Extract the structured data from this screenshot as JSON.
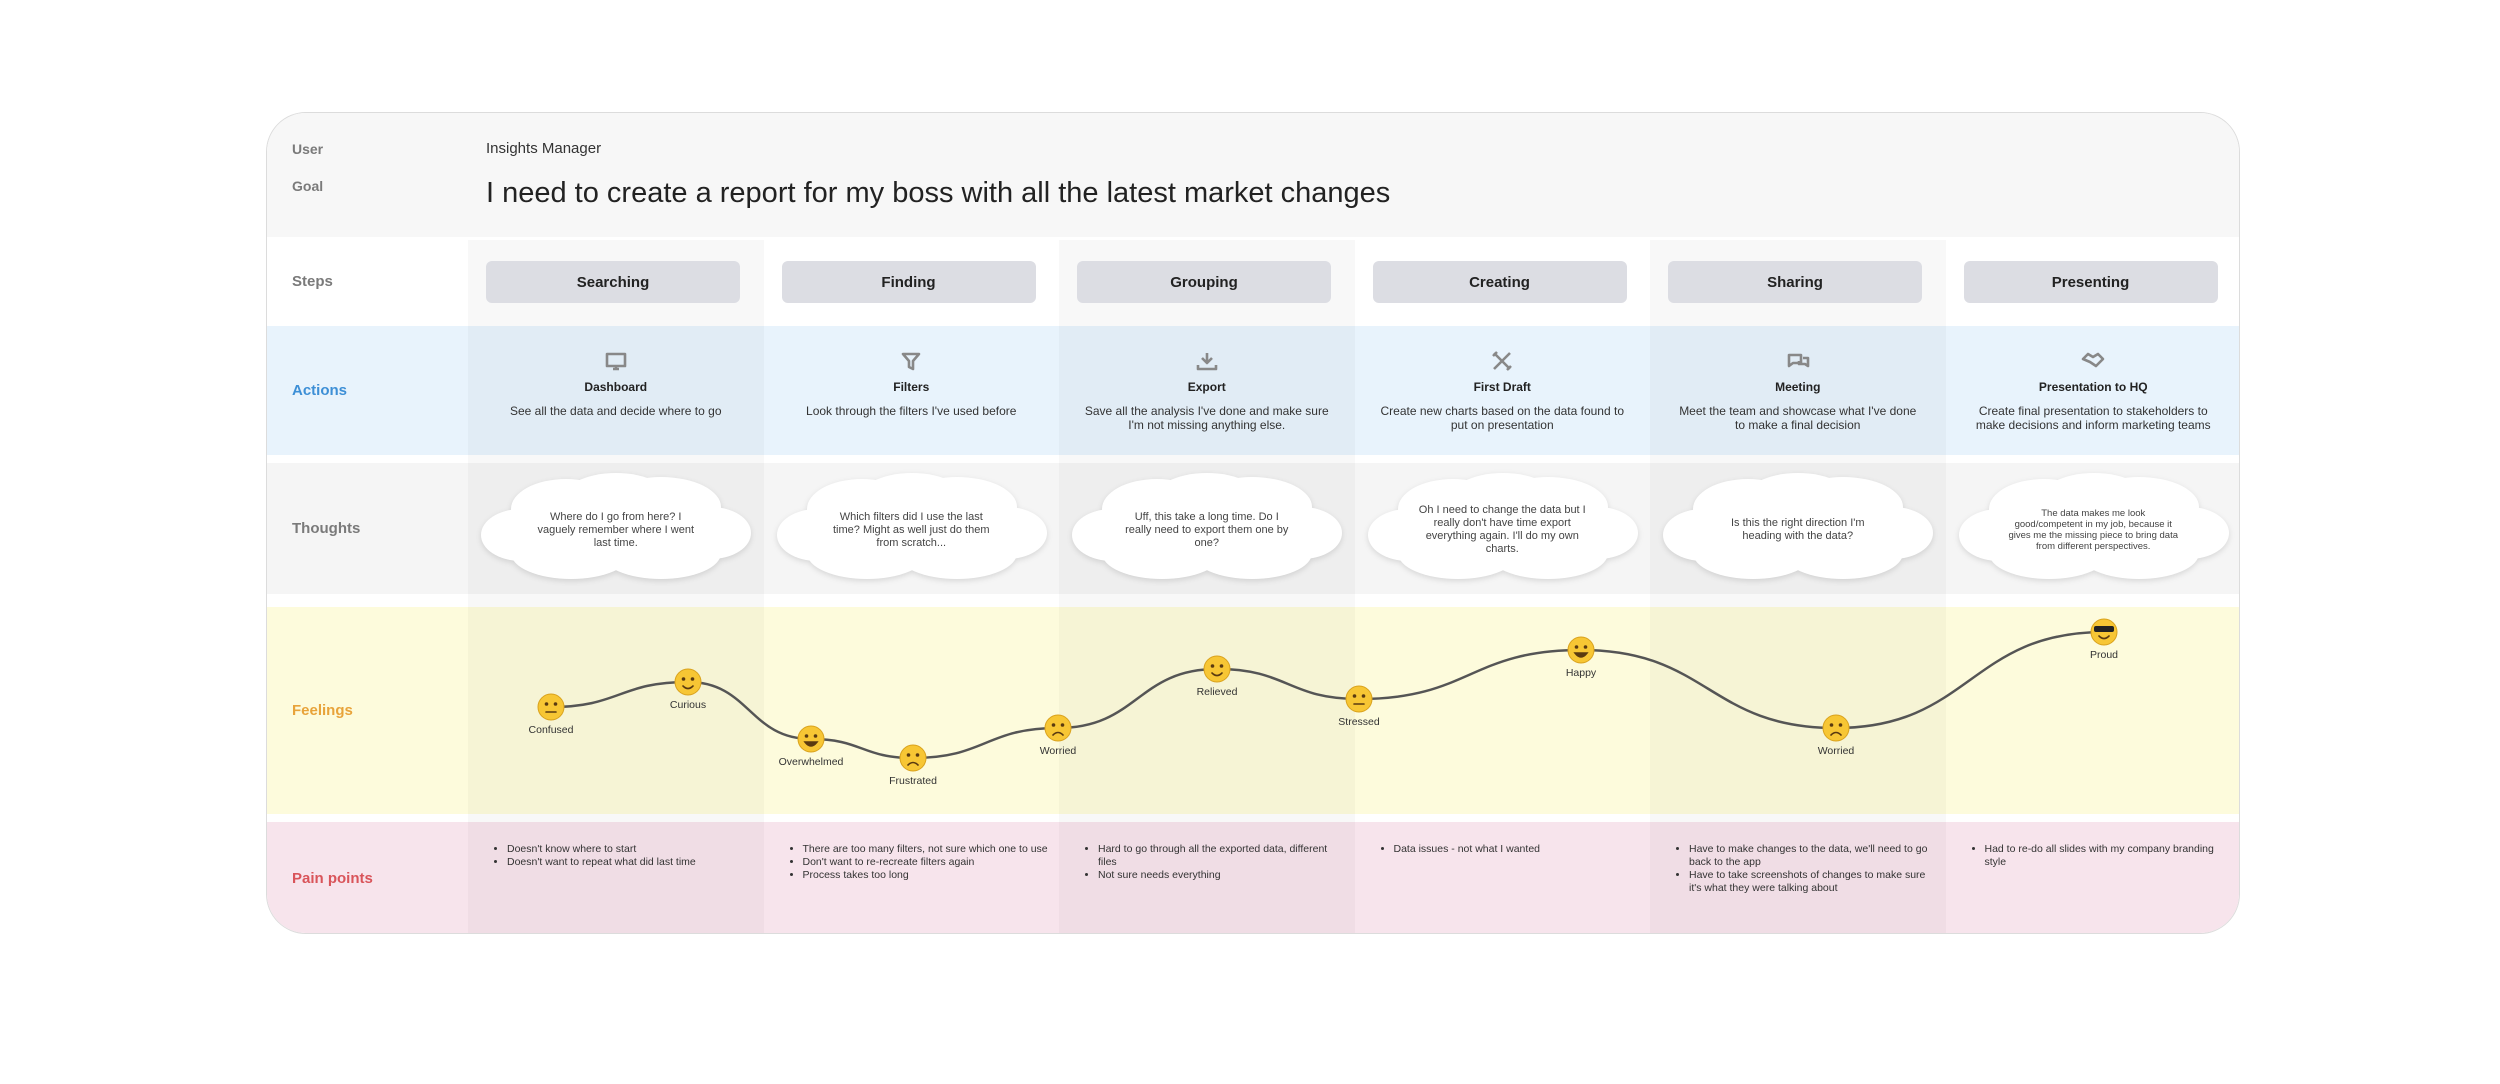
{
  "user_label": "User",
  "user": "Insights Manager",
  "goal_label": "Goal",
  "goal": "I need to create a report for my boss with all the latest market changes",
  "row_labels": {
    "steps": "Steps",
    "actions": "Actions",
    "thoughts": "Thoughts",
    "feelings": "Feelings",
    "pain_points": "Pain points"
  },
  "steps": [
    {
      "name": "Searching",
      "action_title": "Dashboard",
      "action_text": "See all the data and decide where to go",
      "thought": "Where do I go from here? I vaguely remember where I went last time.",
      "pain_points": [
        "Doesn't know where to start",
        "Doesn't want to repeat what did last time"
      ]
    },
    {
      "name": "Finding",
      "action_title": "Filters",
      "action_text": "Look through the filters I've used before",
      "thought": "Which filters did I use the last time? Might as well just do them from scratch...",
      "pain_points": [
        "There are too many filters, not sure which one to use",
        "Don't want to re-recreate filters again",
        "Process takes too long"
      ]
    },
    {
      "name": "Grouping",
      "action_title": "Export",
      "action_text": "Save all the analysis I've done and make sure I'm not missing anything else.",
      "thought": "Uff, this take a long time. Do I really need to export them one by one?",
      "pain_points": [
        "Hard to go through all the exported data, different files",
        "Not sure needs everything"
      ]
    },
    {
      "name": "Creating",
      "action_title": "First Draft",
      "action_text": "Create new charts based on the data found to put on presentation",
      "thought": "Oh I need to change the data but I really don't have time export everything again. I'll do my own charts.",
      "pain_points": [
        "Data issues - not what I wanted"
      ]
    },
    {
      "name": "Sharing",
      "action_title": "Meeting",
      "action_text": "Meet the team and showcase what I've done to make a final decision",
      "thought": "Is this the right direction I'm heading with the data?",
      "pain_points": [
        "Have to make changes to the data, we'll need to go back to the app",
        "Have to take screenshots of changes to make sure it's what they were talking about"
      ]
    },
    {
      "name": "Presenting",
      "action_title": "Presentation to HQ",
      "action_text": "Create final presentation to stakeholders to make decisions and inform marketing teams",
      "thought": "The data makes me look good/competent in my job, because it gives me the missing piece to bring data from different perspectives.",
      "pain_points": [
        "Had to re-do all slides with my company branding style"
      ]
    }
  ],
  "feelings": [
    "Confused",
    "Curious",
    "Overwhelmed",
    "Frustrated",
    "Worried",
    "Relieved",
    "Stressed",
    "Happy",
    "Worried",
    "Proud"
  ]
}
